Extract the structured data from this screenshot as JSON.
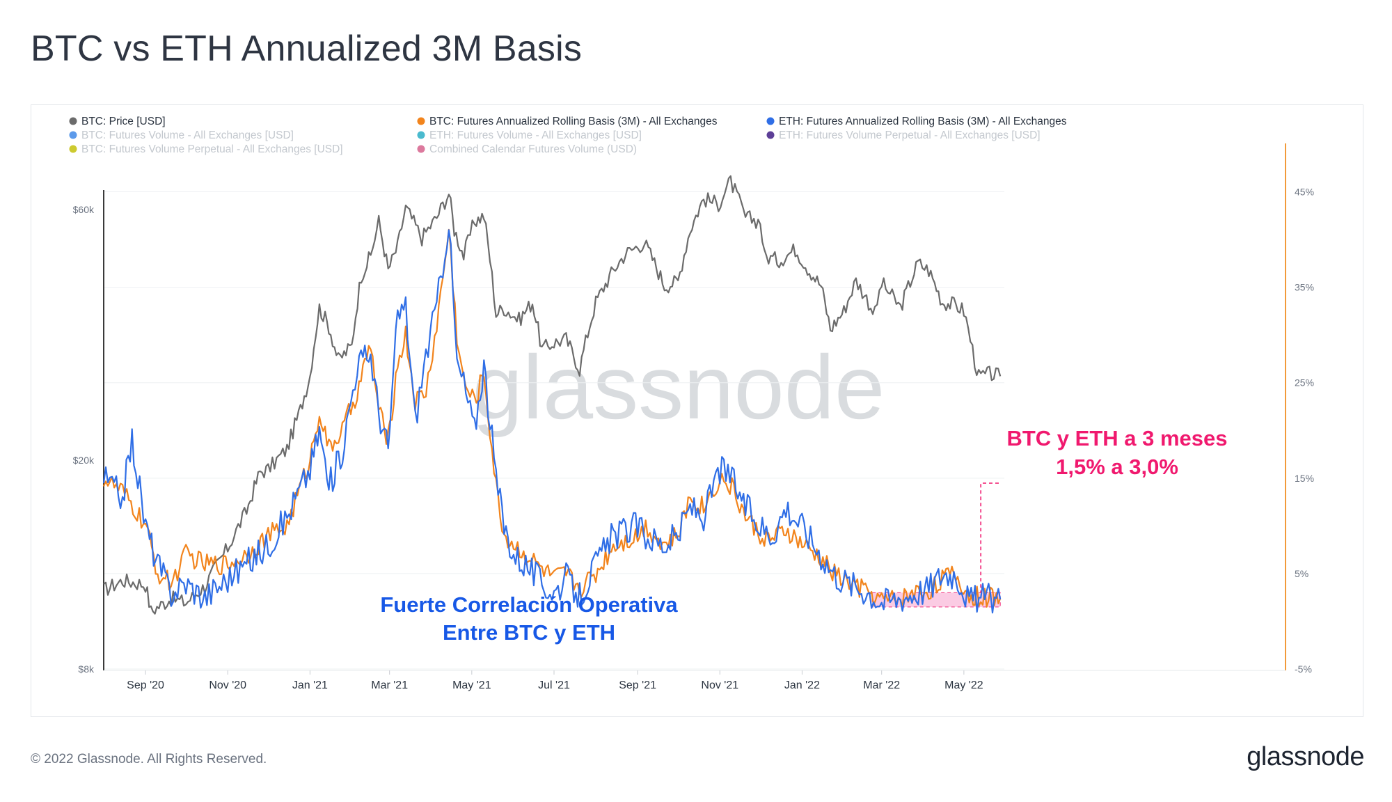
{
  "page": {
    "title": "BTC vs ETH Annualized 3M Basis",
    "copyright": "© 2022 Glassnode. All Rights Reserved.",
    "brand": "glassnode"
  },
  "colors": {
    "btc_price": "#6b6b6b",
    "btc_basis": "#f2841c",
    "eth_basis": "#2f6ee6",
    "right_axis": "#f29a3a",
    "annotation_blue": "#1758e6",
    "annotation_pink": "#f0196e",
    "highlight_fill": "#fbc6e0"
  },
  "chart_data": {
    "type": "line",
    "legend": [
      {
        "label": "BTC: Price [USD]",
        "color": "#6b6b6b",
        "active": true
      },
      {
        "label": "BTC: Futures Annualized Rolling Basis (3M) - All Exchanges",
        "color": "#f2841c",
        "active": true
      },
      {
        "label": "ETH: Futures Annualized Rolling Basis (3M) - All Exchanges",
        "color": "#2f6ee6",
        "active": true
      },
      {
        "label": "BTC: Futures Volume - All Exchanges [USD]",
        "color": "#4a8fe8",
        "active": false
      },
      {
        "label": "ETH: Futures Volume - All Exchanges [USD]",
        "color": "#36b3c9",
        "active": false
      },
      {
        "label": "ETH: Futures Volume Perpetual - All Exchanges [USD]",
        "color": "#4b2a8c",
        "active": false
      },
      {
        "label": "BTC: Futures Volume Perpetual - All Exchanges [USD]",
        "color": "#c8c418",
        "active": false
      },
      {
        "label": "Combined Calendar Futures Volume (USD)",
        "color": "#d86a92",
        "active": false
      }
    ],
    "x_labels": [
      "Sep '20",
      "Nov '20",
      "Jan '21",
      "Mar '21",
      "May '21",
      "Jul '21",
      "Sep '21",
      "Nov '21",
      "Jan '22",
      "Mar '22",
      "May '22"
    ],
    "x_range": [
      "2020-08-01",
      "2022-05-31"
    ],
    "y_left": {
      "scale": "log",
      "ticks": [
        "$60k",
        "$20k",
        "$8k"
      ],
      "tick_values": [
        60000,
        20000,
        8000
      ],
      "range": [
        8000,
        80000
      ]
    },
    "y_right": {
      "ticks": [
        "45%",
        "35%",
        "25%",
        "15%",
        "5%",
        "-5%"
      ],
      "tick_values": [
        45,
        35,
        25,
        15,
        5,
        -5
      ],
      "range": [
        -5,
        50
      ]
    },
    "series": [
      {
        "name": "BTC: Price [USD]",
        "axis": "left",
        "x": [
          "2020-08-01",
          "2020-08-15",
          "2020-09-01",
          "2020-09-05",
          "2020-09-20",
          "2020-10-01",
          "2020-10-15",
          "2020-11-01",
          "2020-11-15",
          "2020-11-25",
          "2020-12-01",
          "2020-12-15",
          "2020-12-25",
          "2021-01-01",
          "2021-01-08",
          "2021-01-15",
          "2021-01-22",
          "2021-02-01",
          "2021-02-08",
          "2021-02-15",
          "2021-02-21",
          "2021-02-28",
          "2021-03-07",
          "2021-03-13",
          "2021-03-25",
          "2021-04-05",
          "2021-04-14",
          "2021-04-18",
          "2021-04-25",
          "2021-05-03",
          "2021-05-10",
          "2021-05-19",
          "2021-05-25",
          "2021-06-05",
          "2021-06-15",
          "2021-06-22",
          "2021-07-01",
          "2021-07-10",
          "2021-07-20",
          "2021-08-01",
          "2021-08-14",
          "2021-08-23",
          "2021-09-06",
          "2021-09-21",
          "2021-10-01",
          "2021-10-10",
          "2021-10-20",
          "2021-10-31",
          "2021-11-09",
          "2021-11-20",
          "2021-12-01",
          "2021-12-04",
          "2021-12-15",
          "2021-12-27",
          "2022-01-05",
          "2022-01-15",
          "2022-01-22",
          "2022-02-01",
          "2022-02-10",
          "2022-02-24",
          "2022-03-01",
          "2022-03-15",
          "2022-03-28",
          "2022-04-05",
          "2022-04-15",
          "2022-04-25",
          "2022-05-01",
          "2022-05-09",
          "2022-05-12",
          "2022-05-20",
          "2022-05-28"
        ],
        "y": [
          11300,
          11800,
          11600,
          10300,
          10900,
          10700,
          11500,
          13600,
          16000,
          19000,
          19200,
          21000,
          25000,
          29000,
          39000,
          36000,
          31000,
          33000,
          45000,
          49000,
          57000,
          46000,
          51000,
          60500,
          53000,
          58000,
          64500,
          55000,
          49000,
          57000,
          58500,
          38000,
          39000,
          37000,
          40000,
          32500,
          33500,
          34000,
          29800,
          40000,
          46000,
          49500,
          52000,
          43000,
          43800,
          55000,
          63000,
          61500,
          68000,
          58000,
          57000,
          49000,
          48000,
          50500,
          46500,
          43000,
          35500,
          38500,
          44000,
          38000,
          43500,
          39000,
          47500,
          46000,
          40000,
          39500,
          38500,
          31000,
          28800,
          29200,
          28900
        ]
      },
      {
        "name": "BTC: Futures Annualized Rolling Basis (3M) - All Exchanges",
        "axis": "right",
        "x": [
          "2020-08-01",
          "2020-08-15",
          "2020-09-01",
          "2020-09-10",
          "2020-09-20",
          "2020-10-01",
          "2020-10-15",
          "2020-11-01",
          "2020-11-15",
          "2020-12-01",
          "2020-12-15",
          "2021-01-01",
          "2021-01-08",
          "2021-01-15",
          "2021-01-25",
          "2021-02-05",
          "2021-02-15",
          "2021-02-21",
          "2021-02-28",
          "2021-03-07",
          "2021-03-13",
          "2021-03-20",
          "2021-03-28",
          "2021-04-05",
          "2021-04-14",
          "2021-04-20",
          "2021-04-25",
          "2021-05-03",
          "2021-05-10",
          "2021-05-19",
          "2021-05-25",
          "2021-06-01",
          "2021-06-10",
          "2021-06-22",
          "2021-07-01",
          "2021-07-10",
          "2021-07-20",
          "2021-08-01",
          "2021-08-14",
          "2021-09-01",
          "2021-09-07",
          "2021-09-21",
          "2021-10-01",
          "2021-10-10",
          "2021-10-20",
          "2021-11-01",
          "2021-11-10",
          "2021-11-20",
          "2021-12-01",
          "2021-12-10",
          "2021-12-20",
          "2022-01-01",
          "2022-01-15",
          "2022-01-25",
          "2022-02-05",
          "2022-02-20",
          "2022-03-01",
          "2022-03-15",
          "2022-03-25",
          "2022-04-05",
          "2022-04-15",
          "2022-04-25",
          "2022-05-05",
          "2022-05-15",
          "2022-05-28"
        ],
        "y": [
          15,
          13.5,
          10,
          5,
          4,
          7,
          6,
          6,
          7,
          9,
          10,
          17,
          22,
          18,
          20,
          24,
          29,
          22,
          19,
          27,
          30,
          23,
          24,
          31,
          41,
          30,
          25,
          23,
          26,
          14,
          9,
          8,
          7,
          5.5,
          4.5,
          5,
          3.5,
          5,
          8,
          9,
          10,
          8,
          9,
          13,
          12,
          15,
          14,
          11,
          9,
          8.5,
          9.5,
          8,
          6.5,
          5,
          4,
          3,
          2.2,
          2.4,
          3,
          3.2,
          4.5,
          4.8,
          2.5,
          2.6,
          2.4
        ]
      },
      {
        "name": "ETH: Futures Annualized Rolling Basis (3M) - All Exchanges",
        "axis": "right",
        "x": [
          "2020-08-01",
          "2020-08-15",
          "2020-08-22",
          "2020-09-01",
          "2020-09-10",
          "2020-09-20",
          "2020-10-01",
          "2020-10-15",
          "2020-11-01",
          "2020-11-15",
          "2020-12-01",
          "2020-12-15",
          "2021-01-01",
          "2021-01-08",
          "2021-01-15",
          "2021-01-25",
          "2021-02-05",
          "2021-02-15",
          "2021-02-21",
          "2021-02-28",
          "2021-03-07",
          "2021-03-13",
          "2021-03-20",
          "2021-03-28",
          "2021-04-05",
          "2021-04-14",
          "2021-04-20",
          "2021-04-25",
          "2021-05-03",
          "2021-05-10",
          "2021-05-19",
          "2021-05-25",
          "2021-06-01",
          "2021-06-10",
          "2021-06-22",
          "2021-07-01",
          "2021-07-10",
          "2021-07-20",
          "2021-08-01",
          "2021-08-14",
          "2021-09-01",
          "2021-09-07",
          "2021-09-21",
          "2021-10-01",
          "2021-10-10",
          "2021-10-20",
          "2021-11-01",
          "2021-11-10",
          "2021-11-20",
          "2021-12-01",
          "2021-12-10",
          "2021-12-20",
          "2022-01-01",
          "2022-01-15",
          "2022-01-25",
          "2022-02-05",
          "2022-02-20",
          "2022-03-01",
          "2022-03-15",
          "2022-03-25",
          "2022-04-05",
          "2022-04-15",
          "2022-04-25",
          "2022-05-05",
          "2022-05-15",
          "2022-05-28"
        ],
        "y": [
          15,
          13,
          19,
          10,
          6,
          3,
          4,
          2.5,
          4.5,
          6,
          8,
          11,
          16,
          20,
          14,
          18,
          27,
          28,
          22,
          18,
          32,
          33,
          21,
          28,
          33,
          42,
          27,
          25,
          20,
          27,
          15,
          10,
          7,
          6,
          4,
          3,
          4.5,
          2.5,
          6,
          9,
          10,
          9,
          8,
          9,
          12,
          11,
          16,
          15,
          12,
          10,
          9,
          12,
          10,
          7,
          5,
          4,
          3,
          2,
          2.5,
          3,
          3.5,
          5,
          5,
          2.2,
          2.5,
          2.3
        ]
      }
    ],
    "annotations": {
      "correlation_line1": "Fuerte Correlación Operativa",
      "correlation_line2": "Entre BTC y ETH",
      "range_line1": "BTC y ETH a 3 meses",
      "range_line2": "1,5% a 3,0%"
    },
    "highlight_range": {
      "x": [
        "2022-02-22",
        "2022-05-28"
      ],
      "y": [
        1.5,
        3.0
      ]
    },
    "watermark": "glassnode"
  }
}
